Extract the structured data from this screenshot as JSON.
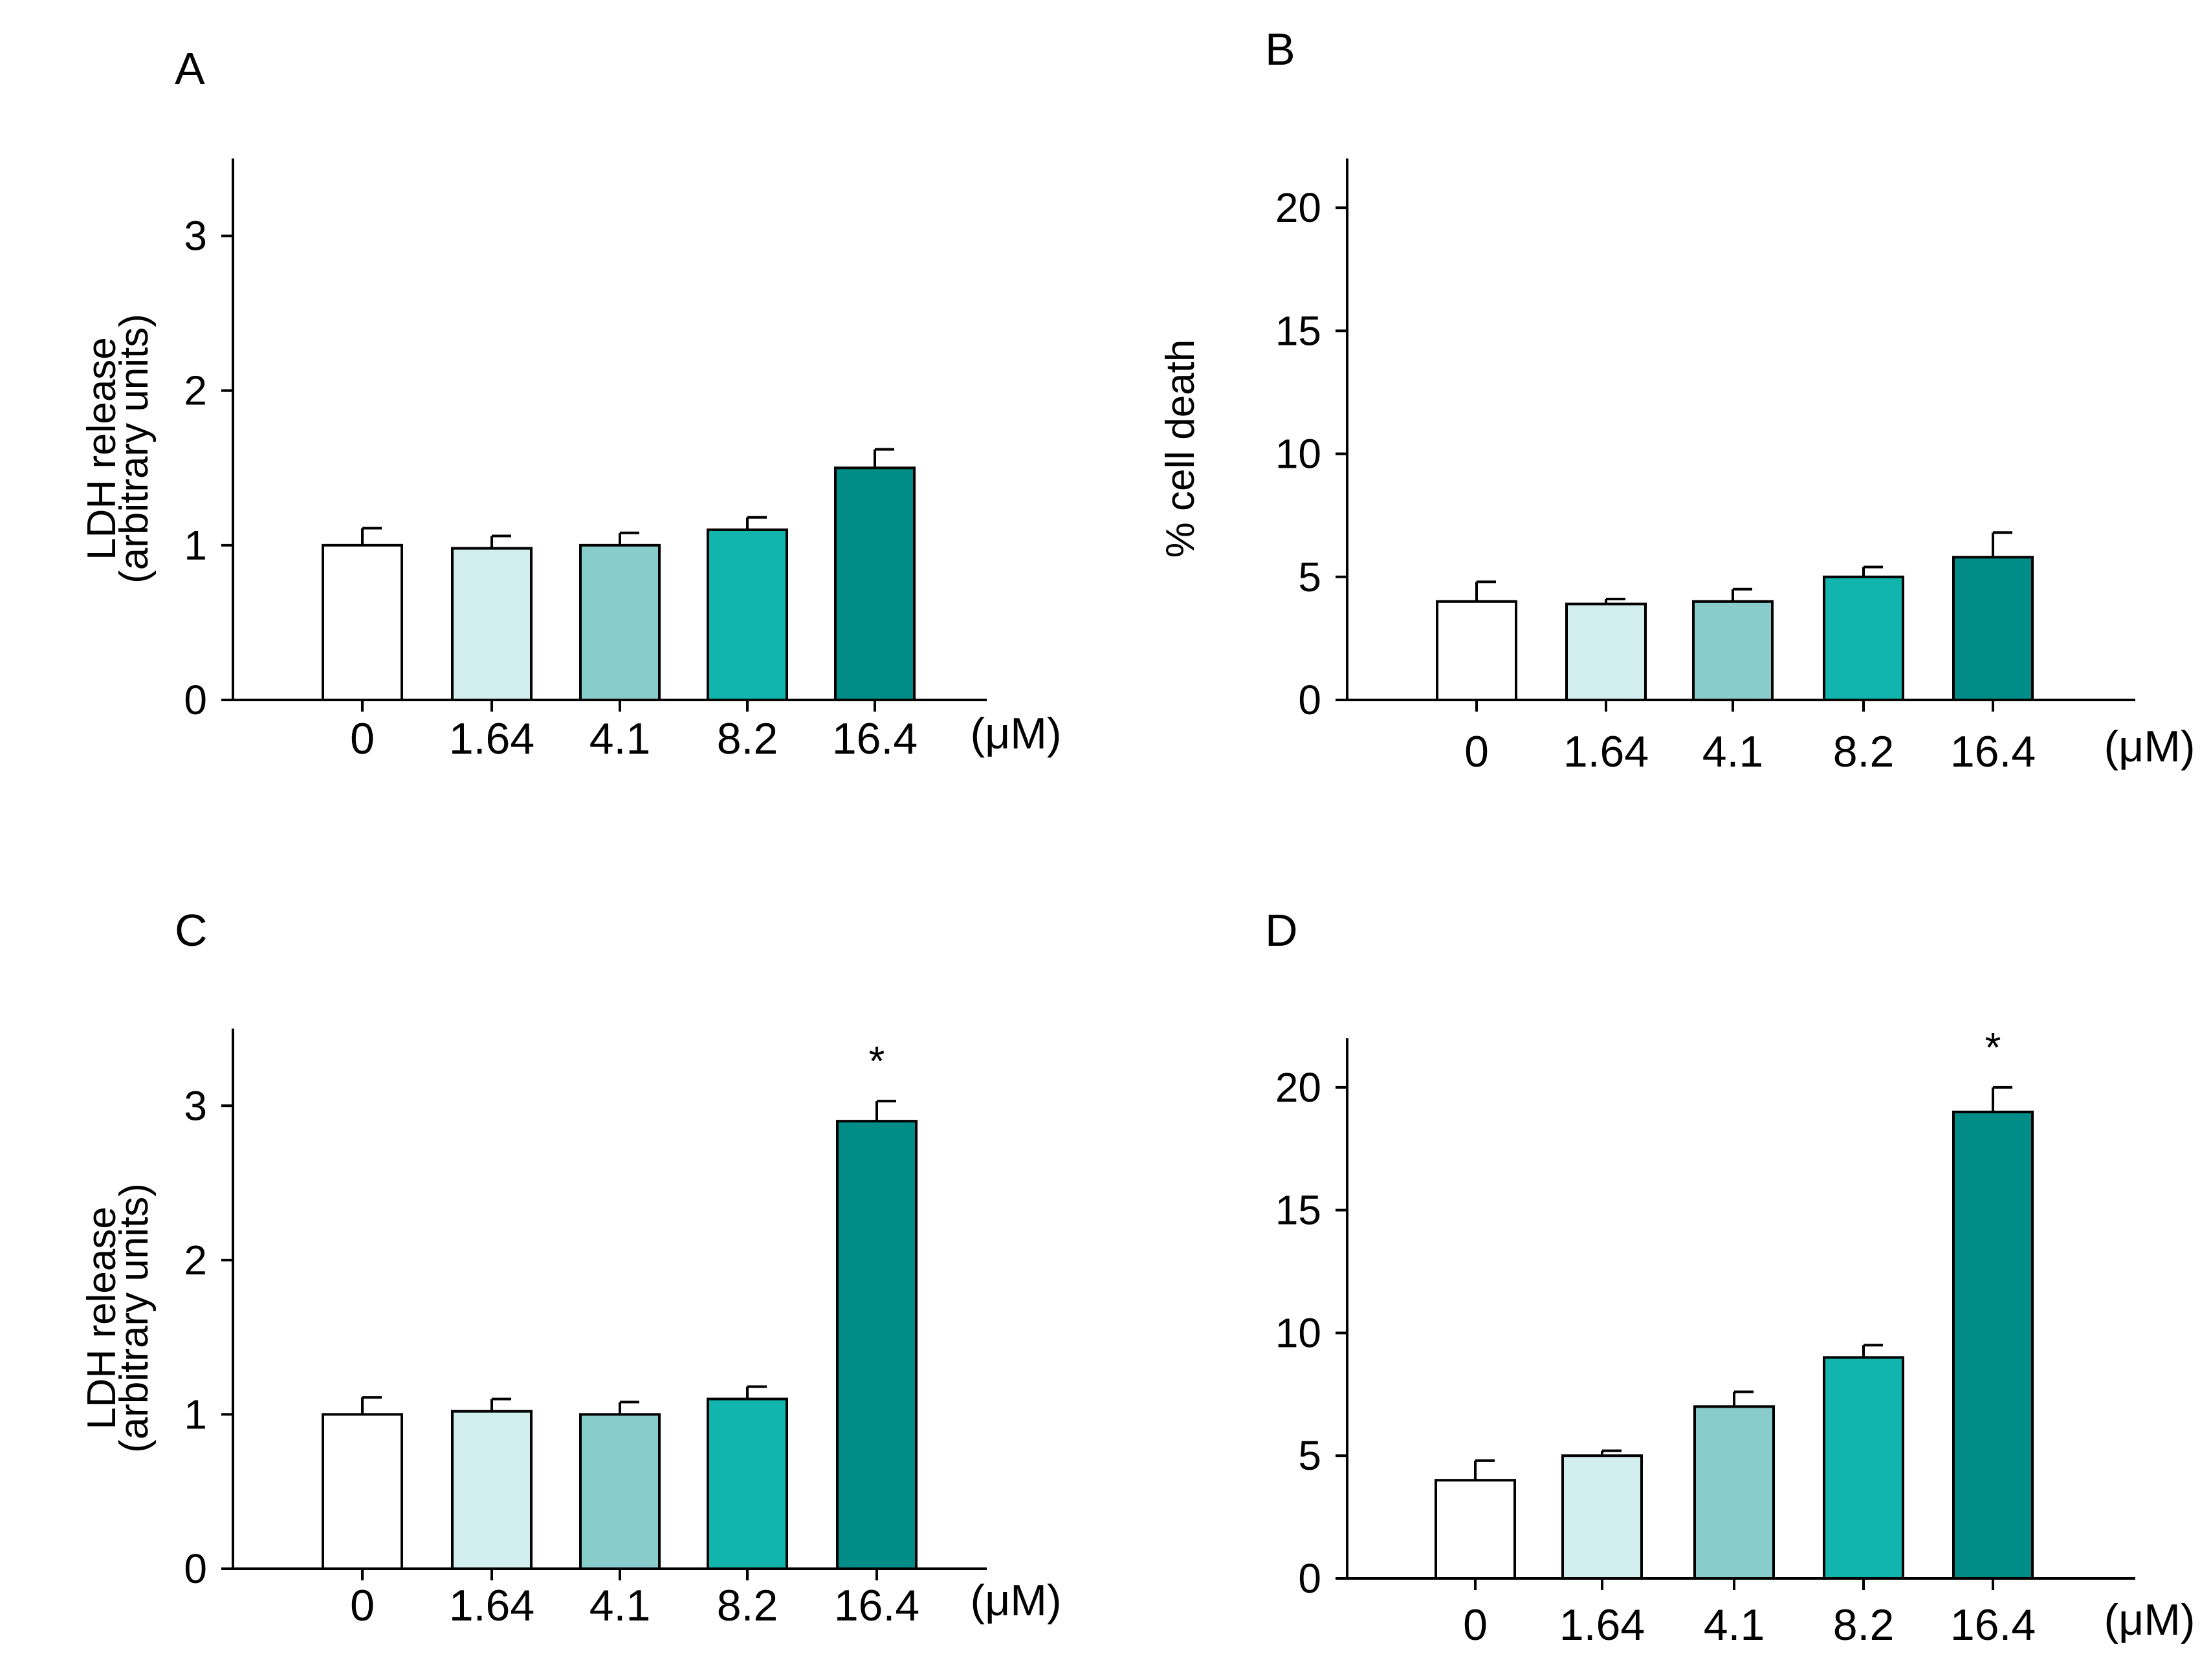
{
  "figure": {
    "panels": [
      "A",
      "B",
      "C",
      "D"
    ],
    "unit_label": "(μM)"
  },
  "chart_data": [
    {
      "panel": "A",
      "type": "bar",
      "categories": [
        "0",
        "1.64",
        "4.1",
        "8.2",
        "16.4"
      ],
      "values": [
        1.0,
        0.98,
        1.0,
        1.1,
        1.5
      ],
      "errors": [
        0.11,
        0.08,
        0.08,
        0.08,
        0.12
      ],
      "ylabel": [
        "LDH release",
        "(arbitrary units)"
      ],
      "ylim": [
        0,
        3.5
      ],
      "yticks": [
        0,
        1,
        2,
        3
      ],
      "annotations": [
        "",
        "",
        "",
        "",
        ""
      ],
      "unit": "(μM)"
    },
    {
      "panel": "B",
      "type": "bar",
      "categories": [
        "0",
        "1.64",
        "4.1",
        "8.2",
        "16.4"
      ],
      "values": [
        4.0,
        3.9,
        4.0,
        5.0,
        5.8
      ],
      "errors": [
        0.8,
        0.2,
        0.5,
        0.4,
        1.0
      ],
      "ylabel": [
        "% cell death"
      ],
      "ylim": [
        0,
        22
      ],
      "yticks": [
        0,
        5,
        10,
        15,
        20
      ],
      "annotations": [
        "",
        "",
        "",
        "",
        ""
      ],
      "unit": "(μM)"
    },
    {
      "panel": "C",
      "type": "bar",
      "categories": [
        "0",
        "1.64",
        "4.1",
        "8.2",
        "16.4"
      ],
      "values": [
        1.0,
        1.02,
        1.0,
        1.1,
        2.9
      ],
      "errors": [
        0.11,
        0.08,
        0.08,
        0.08,
        0.13
      ],
      "ylabel": [
        "LDH release",
        "(arbitrary units)"
      ],
      "ylim": [
        0,
        3.5
      ],
      "yticks": [
        0,
        1,
        2,
        3
      ],
      "annotations": [
        "",
        "",
        "",
        "",
        "*"
      ],
      "unit": "(μM)"
    },
    {
      "panel": "D",
      "type": "bar",
      "categories": [
        "0",
        "1.64",
        "4.1",
        "8.2",
        "16.4"
      ],
      "values": [
        4.0,
        5.0,
        7.0,
        9.0,
        19.0
      ],
      "errors": [
        0.8,
        0.2,
        0.6,
        0.5,
        1.0
      ],
      "ylabel": [],
      "ylim": [
        0,
        22
      ],
      "yticks": [
        0,
        5,
        10,
        15,
        20
      ],
      "annotations": [
        "",
        "",
        "",
        "",
        "*"
      ],
      "unit": "(μM)"
    }
  ],
  "colors": {
    "bars": [
      "#ffffff",
      "#d2eeee",
      "#88cccc",
      "#11b5ad",
      "#008d87"
    ],
    "axis": "#000000"
  }
}
